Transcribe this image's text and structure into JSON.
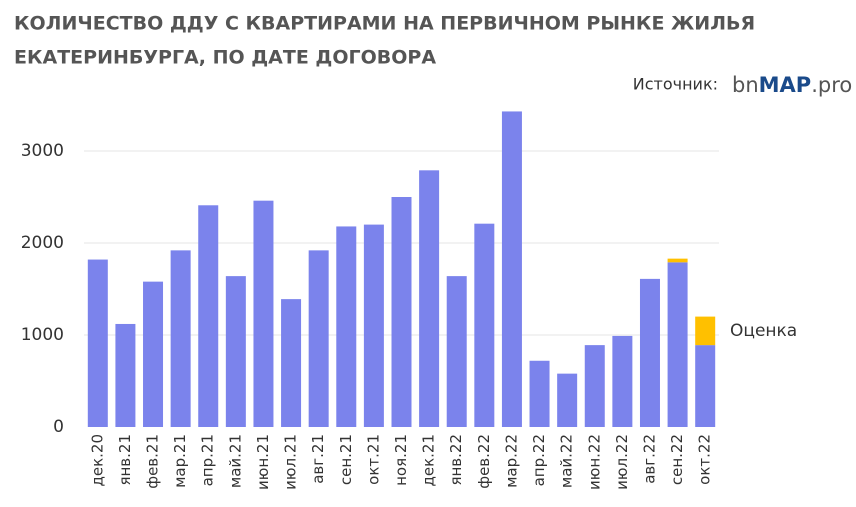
{
  "chart_data": {
    "type": "stacked-bar",
    "title": [
      "КОЛИЧЕСТВО ДДУ С КВАРТИРАМИ НА ПЕРВИЧНОМ РЫНКЕ ЖИЛЬЯ",
      "ЕКАТЕРИНБУРГА, ПО ДАТЕ ДОГОВОРА"
    ],
    "source_label": "Источник:",
    "source_logo": [
      "bn",
      "MAP",
      ".pro"
    ],
    "categories": [
      "дек.20",
      "янв.21",
      "фев.21",
      "мар.21",
      "апр.21",
      "май.21",
      "июн.21",
      "июл.21",
      "авг.21",
      "сен.21",
      "окт.21",
      "ноя.21",
      "дек.21",
      "янв.22",
      "фев.22",
      "мар.22",
      "апр.22",
      "май.22",
      "июн.22",
      "июл.22",
      "авг.22",
      "сен.22",
      "окт.22"
    ],
    "series": [
      {
        "color": "#7b83ec",
        "values": [
          1820,
          1120,
          1580,
          1920,
          2410,
          1640,
          2460,
          1390,
          1920,
          2180,
          2200,
          2500,
          2790,
          1640,
          2210,
          3430,
          720,
          580,
          890,
          990,
          1610,
          1790,
          890
        ]
      },
      {
        "name": "Оценка",
        "color": "#ffc000",
        "values": [
          null,
          null,
          null,
          null,
          null,
          null,
          null,
          null,
          null,
          null,
          null,
          null,
          null,
          null,
          null,
          null,
          null,
          null,
          null,
          null,
          null,
          40,
          310
        ]
      }
    ],
    "ylim": [
      0,
      3500
    ],
    "yticks": [
      0,
      1000,
      2000,
      3000
    ],
    "grid": true
  }
}
